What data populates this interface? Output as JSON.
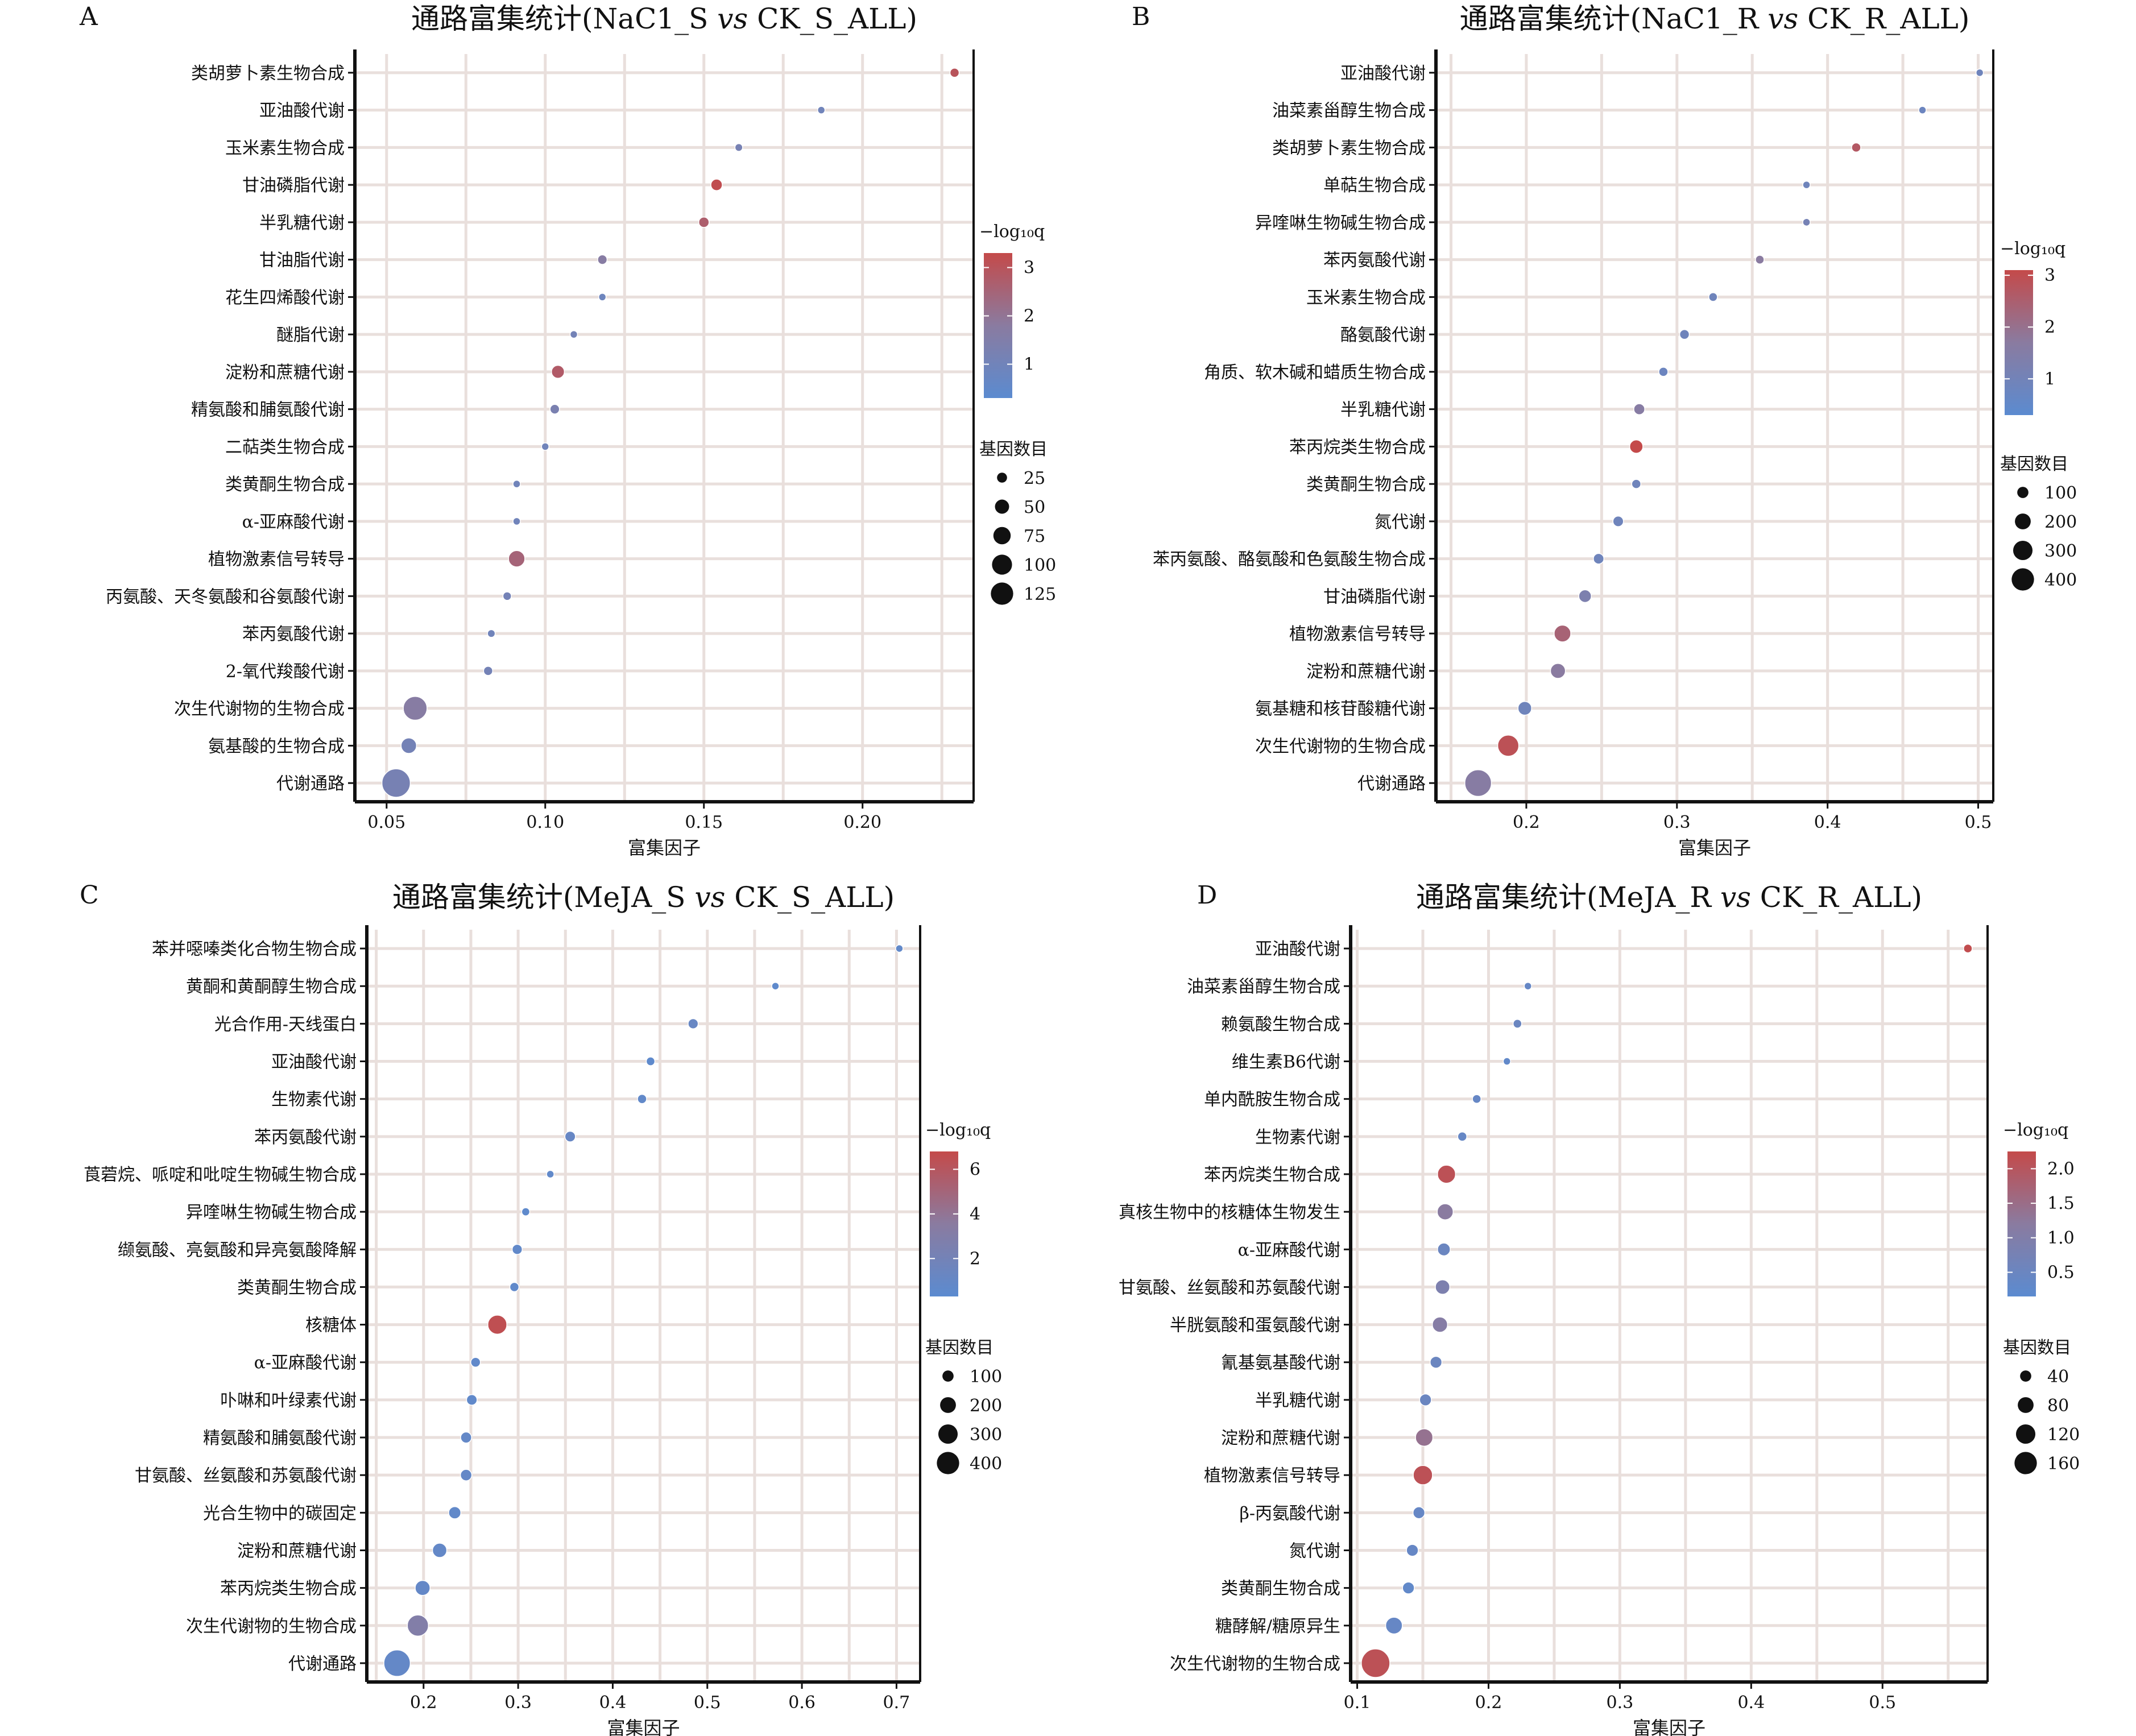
{
  "style": {
    "low_color": "#5b8bd0",
    "mid_color": "#8a7ba0",
    "high_color": "#c44a4a",
    "grid_color": "#e9dfdc",
    "dot_outline": "#ffffff"
  },
  "chart_data": [
    {
      "panel": "A",
      "type": "scatter",
      "title_prefix": "通路富集统计(NaC1_S ",
      "title_vs": "vs",
      "title_suffix": " CK_S_ALL)",
      "xlabel": "富集因子",
      "xlim": [
        0.04,
        0.235
      ],
      "xticks": [
        0.05,
        0.1,
        0.15,
        0.2
      ],
      "xtick_labels": [
        "0.05",
        "0.10",
        "0.15",
        "0.20"
      ],
      "x_minor_step": 0.025,
      "categories": [
        "类胡萝卜素生物合成",
        "亚油酸代谢",
        "玉米素生物合成",
        "甘油磷脂代谢",
        "半乳糖代谢",
        "甘油脂代谢",
        "花生四烯酸代谢",
        "醚脂代谢",
        "淀粉和蔗糖代谢",
        "精氨酸和脯氨酸代谢",
        "二萜类生物合成",
        "类黄酮生物合成",
        "α-亚麻酸代谢",
        "植物激素信号转导",
        "丙氨酸、天冬氨酸和谷氨酸代谢",
        "苯丙氨酸代谢",
        "2-氧代羧酸代谢",
        "次生代谢物的生物合成",
        "氨基酸的生物合成",
        "代谢通路"
      ],
      "x": [
        0.229,
        0.187,
        0.161,
        0.154,
        0.15,
        0.118,
        0.118,
        0.109,
        0.104,
        0.103,
        0.1,
        0.091,
        0.091,
        0.091,
        0.088,
        0.083,
        0.082,
        0.059,
        0.057,
        0.053
      ],
      "neglog10q": [
        3.0,
        1.0,
        1.2,
        3.2,
        2.7,
        1.7,
        0.9,
        1.1,
        2.8,
        1.3,
        1.0,
        1.0,
        1.0,
        2.5,
        1.1,
        1.0,
        1.1,
        1.7,
        1.1,
        1.2
      ],
      "gene_count": [
        14,
        6,
        10,
        22,
        18,
        15,
        5,
        8,
        28,
        15,
        7,
        8,
        8,
        45,
        12,
        10,
        14,
        95,
        40,
        135
      ],
      "color_legend": {
        "title": "−log₁₀q",
        "min": 0.3,
        "max": 3.3,
        "ticks": [
          3,
          2,
          1
        ]
      },
      "size_legend": {
        "title": "基因数目",
        "values": [
          25,
          50,
          75,
          100,
          125
        ]
      }
    },
    {
      "panel": "B",
      "type": "scatter",
      "title_prefix": "通路富集统计(NaC1_R ",
      "title_vs": "vs",
      "title_suffix": " CK_R_ALL)",
      "xlabel": "富集因子",
      "xlim": [
        0.14,
        0.51
      ],
      "xticks": [
        0.2,
        0.3,
        0.4,
        0.5
      ],
      "xtick_labels": [
        "0.2",
        "0.3",
        "0.4",
        "0.5"
      ],
      "x_minor_step": 0.05,
      "categories": [
        "亚油酸代谢",
        "油菜素甾醇生物合成",
        "类胡萝卜素生物合成",
        "单萜生物合成",
        "异喹啉生物碱生物合成",
        "苯丙氨酸代谢",
        "玉米素生物合成",
        "酪氨酸代谢",
        "角质、软木碱和蜡质生物合成",
        "半乳糖代谢",
        "苯丙烷类生物合成",
        "类黄酮生物合成",
        "氮代谢",
        "苯丙氨酸、酪氨酸和色氨酸生物合成",
        "甘油磷脂代谢",
        "植物激素信号转导",
        "淀粉和蔗糖代谢",
        "氨基糖和核苷酸糖代谢",
        "次生代谢物的生物合成",
        "代谢通路"
      ],
      "x": [
        0.501,
        0.463,
        0.419,
        0.386,
        0.386,
        0.355,
        0.324,
        0.305,
        0.291,
        0.275,
        0.273,
        0.273,
        0.261,
        0.248,
        0.239,
        0.224,
        0.221,
        0.199,
        0.188,
        0.168
      ],
      "neglog10q": [
        0.9,
        0.8,
        2.7,
        0.9,
        1.1,
        1.7,
        0.9,
        0.9,
        0.8,
        1.6,
        3.1,
        0.9,
        0.9,
        0.9,
        1.3,
        2.4,
        1.7,
        0.9,
        2.9,
        1.6
      ],
      "gene_count": [
        14,
        12,
        45,
        10,
        30,
        40,
        40,
        50,
        45,
        65,
        95,
        45,
        60,
        60,
        85,
        150,
        120,
        100,
        240,
        380
      ],
      "color_legend": {
        "title": "−log₁₀q",
        "min": 0.3,
        "max": 3.1,
        "ticks": [
          3,
          2,
          1
        ]
      },
      "size_legend": {
        "title": "基因数目",
        "values": [
          100,
          200,
          300,
          400
        ]
      }
    },
    {
      "panel": "C",
      "type": "scatter",
      "title_prefix": "通路富集统计(MeJA_S ",
      "title_vs": "vs",
      "title_suffix": " CK_S_ALL)",
      "xlabel": "富集因子",
      "xlim": [
        0.14,
        0.725
      ],
      "xticks": [
        0.2,
        0.3,
        0.4,
        0.5,
        0.6,
        0.7
      ],
      "xtick_labels": [
        "0.2",
        "0.3",
        "0.4",
        "0.5",
        "0.6",
        "0.7"
      ],
      "x_minor_step": 0.05,
      "categories": [
        "苯并噁嗪类化合物生物合成",
        "黄酮和黄酮醇生物合成",
        "光合作用-天线蛋白",
        "亚油酸代谢",
        "生物素代谢",
        "苯丙氨酸代谢",
        "莨菪烷、哌啶和吡啶生物碱生物合成",
        "异喹啉生物碱生物合成",
        "缬氨酸、亮氨酸和异亮氨酸降解",
        "类黄酮生物合成",
        "核糖体",
        "α-亚麻酸代谢",
        "卟啉和叶绿素代谢",
        "精氨酸和脯氨酸代谢",
        "甘氨酸、丝氨酸和苏氨酸代谢",
        "光合生物中的碳固定",
        "淀粉和蔗糖代谢",
        "苯丙烷类生物合成",
        "次生代谢物的生物合成",
        "代谢通路"
      ],
      "x": [
        0.703,
        0.572,
        0.485,
        0.44,
        0.431,
        0.355,
        0.334,
        0.308,
        0.299,
        0.296,
        0.278,
        0.255,
        0.251,
        0.245,
        0.245,
        0.233,
        0.217,
        0.199,
        0.194,
        0.172
      ],
      "neglog10q": [
        0.8,
        0.6,
        1.2,
        0.6,
        0.8,
        1.1,
        0.8,
        0.6,
        0.8,
        0.7,
        6.5,
        0.7,
        0.7,
        0.9,
        0.9,
        0.8,
        0.9,
        0.9,
        3.0,
        0.9
      ],
      "gene_count": [
        20,
        10,
        55,
        40,
        45,
        60,
        30,
        35,
        55,
        45,
        195,
        50,
        60,
        65,
        70,
        80,
        110,
        120,
        240,
        375
      ],
      "color_legend": {
        "title": "−log₁₀q",
        "min": 0.3,
        "max": 6.8,
        "ticks": [
          6,
          4,
          2
        ]
      },
      "size_legend": {
        "title": "基因数目",
        "values": [
          100,
          200,
          300,
          400
        ]
      }
    },
    {
      "panel": "D",
      "type": "scatter",
      "title_prefix": "通路富集统计(MeJA_R ",
      "title_vs": "vs",
      "title_suffix": " CK_R_ALL)",
      "xlabel": "富集因子",
      "xlim": [
        0.095,
        0.58
      ],
      "xticks": [
        0.1,
        0.2,
        0.3,
        0.4,
        0.5
      ],
      "xtick_labels": [
        "0.1",
        "0.2",
        "0.3",
        "0.4",
        "0.5"
      ],
      "x_minor_step": 0.05,
      "categories": [
        "亚油酸代谢",
        "油菜素甾醇生物合成",
        "赖氨酸生物合成",
        "维生素B6代谢",
        "单内酰胺生物合成",
        "生物素代谢",
        "苯丙烷类生物合成",
        "真核生物中的核糖体生物发生",
        "α-亚麻酸代谢",
        "甘氨酸、丝氨酸和苏氨酸代谢",
        "半胱氨酸和蛋氨酸代谢",
        "氰基氨基酸代谢",
        "半乳糖代谢",
        "淀粉和蔗糖代谢",
        "植物激素信号转导",
        "β-丙氨酸代谢",
        "氮代谢",
        "类黄酮生物合成",
        "糖酵解/糖原异生",
        "次生代谢物的生物合成"
      ],
      "x": [
        0.565,
        0.23,
        0.222,
        0.214,
        0.191,
        0.18,
        0.168,
        0.167,
        0.166,
        0.165,
        0.163,
        0.16,
        0.152,
        0.151,
        0.15,
        0.147,
        0.142,
        0.139,
        0.128,
        0.114
      ],
      "neglog10q": [
        2.2,
        0.4,
        0.5,
        0.3,
        0.4,
        0.4,
        2.1,
        1.2,
        0.5,
        0.9,
        1.1,
        0.5,
        0.5,
        1.4,
        2.1,
        0.4,
        0.4,
        0.3,
        0.4,
        2.1
      ],
      "gene_count": [
        16,
        8,
        16,
        8,
        16,
        18,
        70,
        55,
        35,
        45,
        50,
        30,
        30,
        65,
        80,
        30,
        30,
        30,
        60,
        175
      ],
      "color_legend": {
        "title": "−log₁₀q",
        "min": 0.15,
        "max": 2.25,
        "ticks": [
          "2.0",
          "1.5",
          "1.0",
          "0.5"
        ]
      },
      "size_legend": {
        "title": "基因数目",
        "values": [
          40,
          80,
          120,
          160
        ]
      }
    }
  ]
}
